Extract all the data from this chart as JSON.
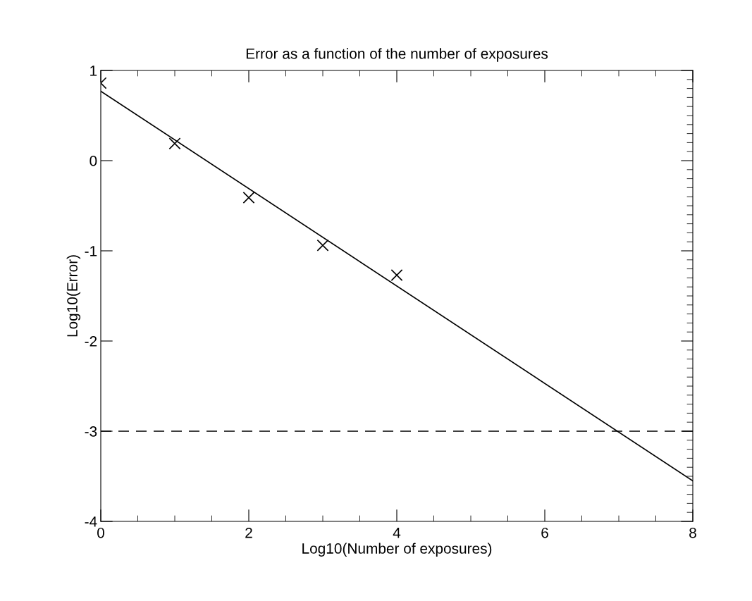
{
  "chart_data": {
    "type": "scatter",
    "title": "Error as a function of the number of exposures",
    "xlabel": "Log10(Number of exposures)",
    "ylabel": "Log10(Error)",
    "xlim": [
      0,
      8
    ],
    "ylim": [
      -4,
      1
    ],
    "xticks": [
      0,
      2,
      4,
      6,
      8
    ],
    "yticks": [
      -4,
      -3,
      -2,
      -1,
      0,
      1
    ],
    "grid": false,
    "legend": false,
    "series": [
      {
        "color": "#000000",
        "marker": "cross",
        "x": [
          0,
          1,
          2,
          3,
          4
        ],
        "values": [
          0.86,
          0.19,
          -0.41,
          -0.94,
          -1.27
        ]
      },
      {
        "type": "line",
        "color": "#000000",
        "marker": "none",
        "line_style": "solid",
        "x": [
          0,
          8
        ],
        "values": [
          0.77,
          -3.55
        ]
      }
    ],
    "ref_lines": [
      {
        "axis": "y",
        "value": -3,
        "color": "#000000",
        "line_style": "dashed"
      }
    ]
  }
}
